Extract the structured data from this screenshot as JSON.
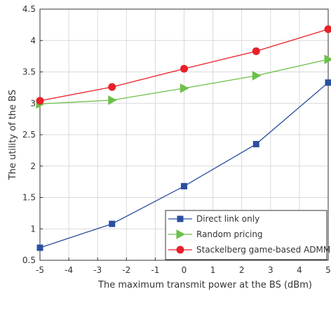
{
  "chart_data": {
    "type": "line",
    "title": "",
    "xlabel": "The maximum transmit power at the BS (dBm)",
    "ylabel": "The utility of the BS",
    "xlim": [
      -5,
      5
    ],
    "ylim": [
      0.5,
      4.5
    ],
    "xticks": [
      -5,
      -4,
      -3,
      -2,
      -1,
      0,
      1,
      2,
      3,
      4,
      5
    ],
    "yticks": [
      0.5,
      1,
      1.5,
      2,
      2.5,
      3,
      3.5,
      4,
      4.5
    ],
    "xtick_labels": [
      "-5",
      "-4",
      "-3",
      "-2",
      "-1",
      "0",
      "1",
      "2",
      "3",
      "4",
      "5"
    ],
    "ytick_labels": [
      "0.5",
      "1",
      "1.5",
      "2",
      "2.5",
      "3",
      "3.5",
      "4",
      "4.5"
    ],
    "grid": true,
    "legend_position": "bottom-right",
    "x": [
      -5,
      -2.5,
      0,
      2.5,
      5
    ],
    "series": [
      {
        "name": "Direct link only",
        "color": "#2b4ea0",
        "marker": "square",
        "values": [
          0.7,
          1.08,
          1.68,
          2.35,
          3.33
        ]
      },
      {
        "name": "Random pricing",
        "color": "#6cc04a",
        "marker": "triangle-right",
        "values": [
          2.99,
          3.05,
          3.24,
          3.44,
          3.7
        ]
      },
      {
        "name": "Stackelberg game-based ADMM",
        "color": "#e8202a",
        "marker": "circle",
        "values": [
          3.04,
          3.26,
          3.55,
          3.83,
          4.18
        ]
      }
    ]
  }
}
